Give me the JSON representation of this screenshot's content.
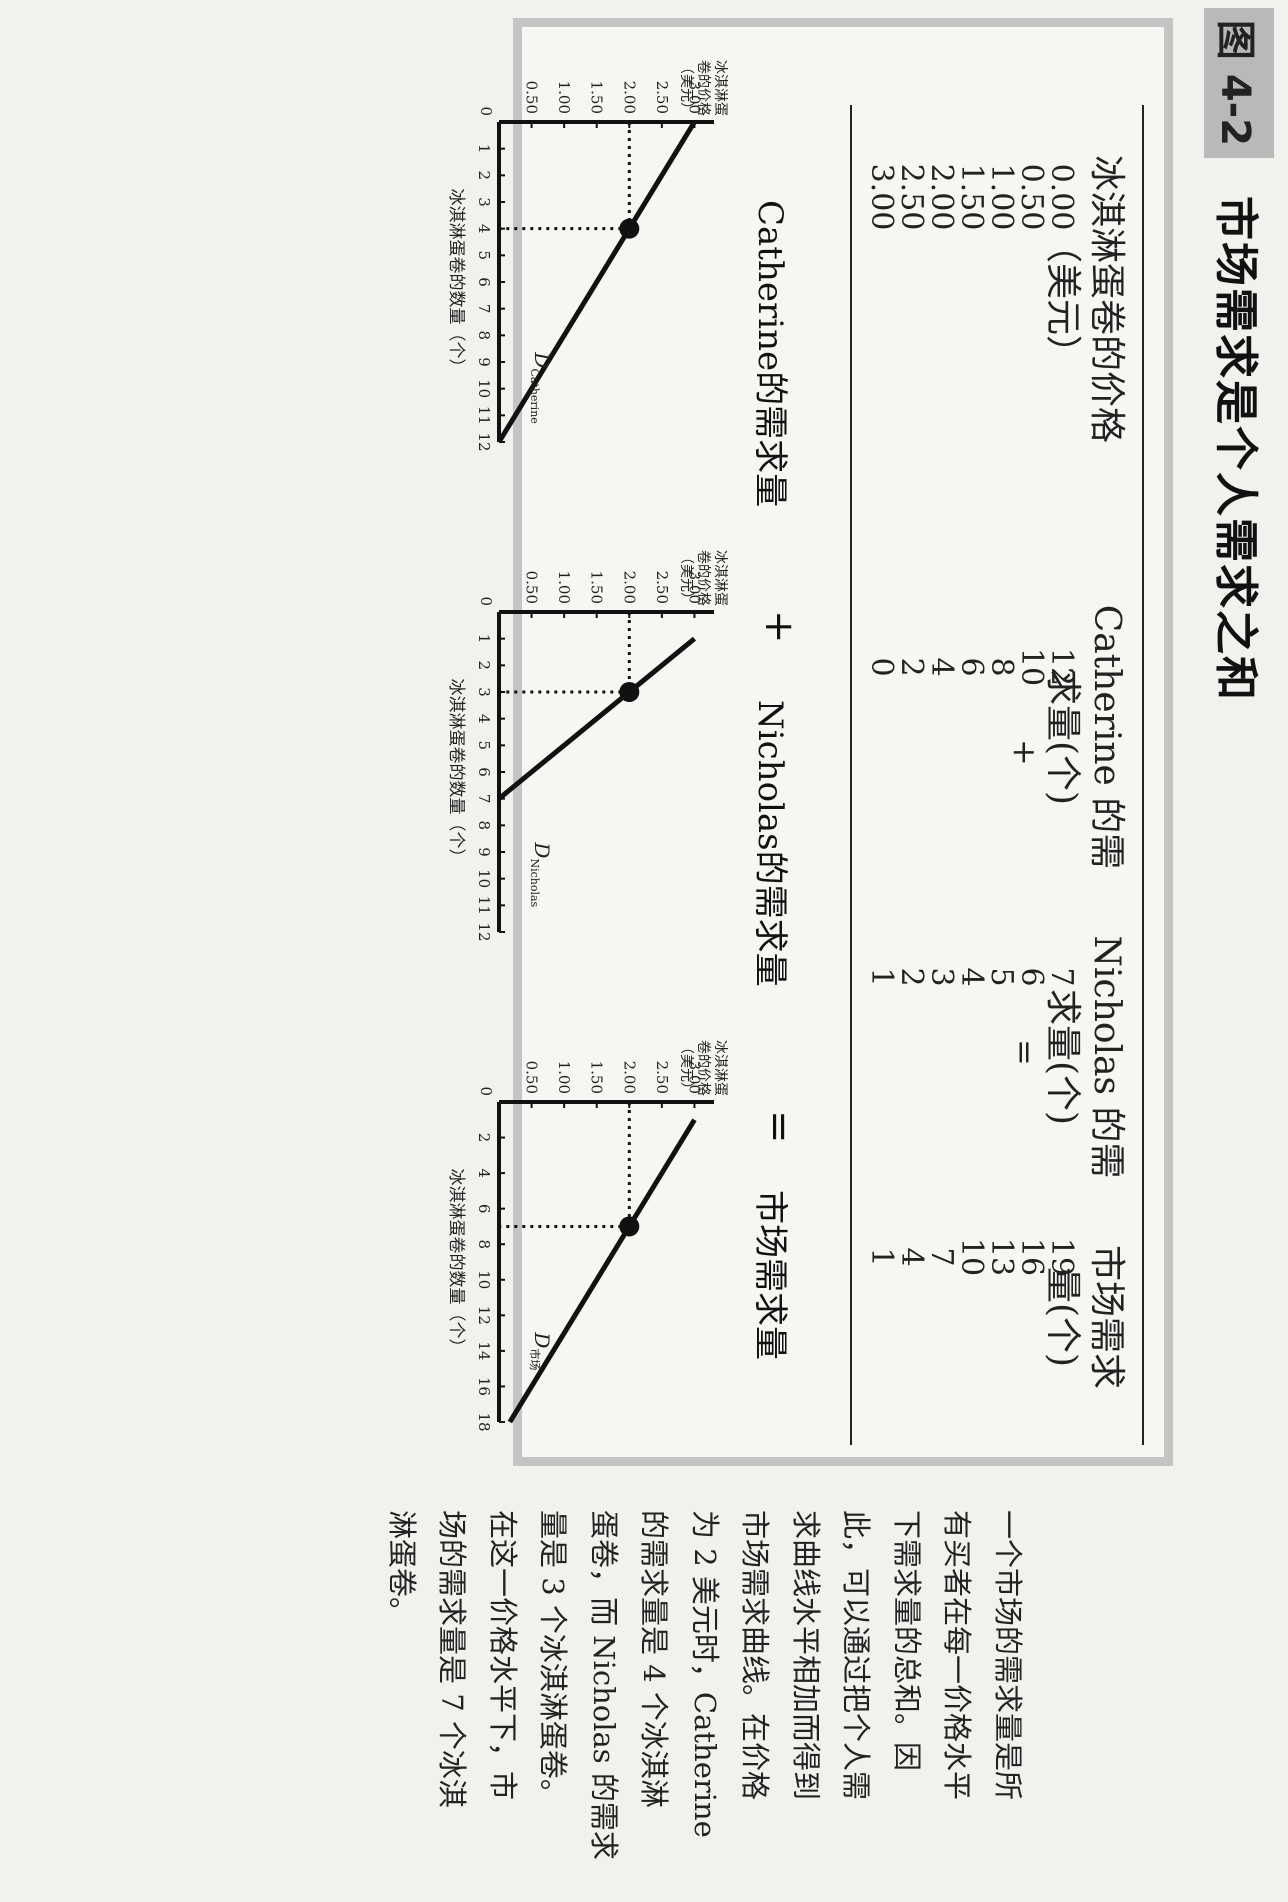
{
  "figure": {
    "label": "图 4-2",
    "title": "市场需求是个人需求之和"
  },
  "table": {
    "headers": [
      [
        "冰淇淋蛋卷的价格",
        "（美元）"
      ],
      [
        "Catherine 的需",
        "求量(个)"
      ],
      [
        "Nicholas 的需",
        "求量(个)"
      ],
      [
        "市场需求",
        "量(个)"
      ]
    ],
    "ops": {
      "plus": "+",
      "equals": "="
    },
    "rows": [
      {
        "price": "0.00",
        "catherine": "12",
        "nicholas": "7",
        "market": "19"
      },
      {
        "price": "0.50",
        "catherine": "10",
        "nicholas": "6",
        "market": "16"
      },
      {
        "price": "1.00",
        "catherine": "8",
        "nicholas": "5",
        "market": "13"
      },
      {
        "price": "1.50",
        "catherine": "6",
        "nicholas": "4",
        "market": "10"
      },
      {
        "price": "2.00",
        "catherine": "4",
        "nicholas": "3",
        "market": "7"
      },
      {
        "price": "2.50",
        "catherine": "2",
        "nicholas": "2",
        "market": "4"
      },
      {
        "price": "3.00",
        "catherine": "0",
        "nicholas": "1",
        "market": "1"
      }
    ]
  },
  "captions": {
    "catherine": "Catherine的需求量",
    "plus": "+",
    "nicholas": "Nicholas的需求量",
    "equals": "=",
    "market": "市场需求量"
  },
  "chart_data": [
    {
      "type": "line",
      "ylabel": [
        "冰淇淋蛋",
        "卷的价格",
        "（美元）"
      ],
      "xlabel": "冰淇淋蛋卷的数量（个）",
      "yticks": [
        "3.00",
        "2.50",
        "2.00",
        "1.50",
        "1.00",
        "0.50"
      ],
      "origin_label": "0",
      "xticks": [
        "1",
        "2",
        "3",
        "4",
        "5",
        "6",
        "7",
        "8",
        "9",
        "10",
        "11",
        "12"
      ],
      "xlim": [
        0,
        12
      ],
      "ylim": [
        0,
        3.3
      ],
      "curve_label": {
        "main": "D",
        "sub": "Catherine"
      },
      "line": {
        "x": [
          0,
          12
        ],
        "y": [
          3.0,
          0.0
        ]
      },
      "highlight": {
        "x": 4,
        "y": 2.0
      }
    },
    {
      "type": "line",
      "ylabel": [
        "冰淇淋蛋",
        "卷的价格",
        "（美元）"
      ],
      "xlabel": "冰淇淋蛋卷的数量（个）",
      "yticks": [
        "3.00",
        "2.50",
        "2.00",
        "1.50",
        "1.00",
        "0.50"
      ],
      "origin_label": "0",
      "xticks": [
        "1",
        "2",
        "3",
        "4",
        "5",
        "6",
        "7",
        "8",
        "9",
        "10",
        "11",
        "12"
      ],
      "xlim": [
        0,
        12
      ],
      "ylim": [
        0,
        3.3
      ],
      "curve_label": {
        "main": "D",
        "sub": "Nicholas"
      },
      "line": {
        "x": [
          1,
          7
        ],
        "y": [
          3.0,
          0.0
        ]
      },
      "highlight": {
        "x": 3,
        "y": 2.0
      }
    },
    {
      "type": "line",
      "ylabel": [
        "冰淇淋蛋",
        "卷的价格",
        "（美元）"
      ],
      "xlabel": "冰淇淋蛋卷的数量（个）",
      "yticks": [
        "3.00",
        "2.50",
        "2.00",
        "1.50",
        "1.00",
        "0.50"
      ],
      "origin_label": "0",
      "xticks": [
        "2",
        "4",
        "6",
        "8",
        "10",
        "12",
        "14",
        "16",
        "18"
      ],
      "xlim": [
        0,
        18
      ],
      "ylim": [
        0,
        3.3
      ],
      "curve_label": {
        "main": "D",
        "sub": "市场"
      },
      "line": {
        "x": [
          1,
          19
        ],
        "y": [
          3.0,
          0.0
        ]
      },
      "highlight": {
        "x": 7,
        "y": 2.0
      }
    }
  ],
  "body_text": [
    "一个市场的需求量是所",
    "有买者在每一价格水平",
    "下需求量的总和。因",
    "此，可以通过把个人需",
    "求曲线水平相加而得到",
    "市场需求曲线。在价格",
    "为 2 美元时，Catherine",
    "的需求量是 4 个冰淇淋",
    "蛋卷，而 Nicholas 的需求",
    "量是 3 个冰淇淋蛋卷。",
    "在这一价格水平下，市",
    "场的需求量是 7 个冰淇",
    "淋蛋卷。"
  ]
}
